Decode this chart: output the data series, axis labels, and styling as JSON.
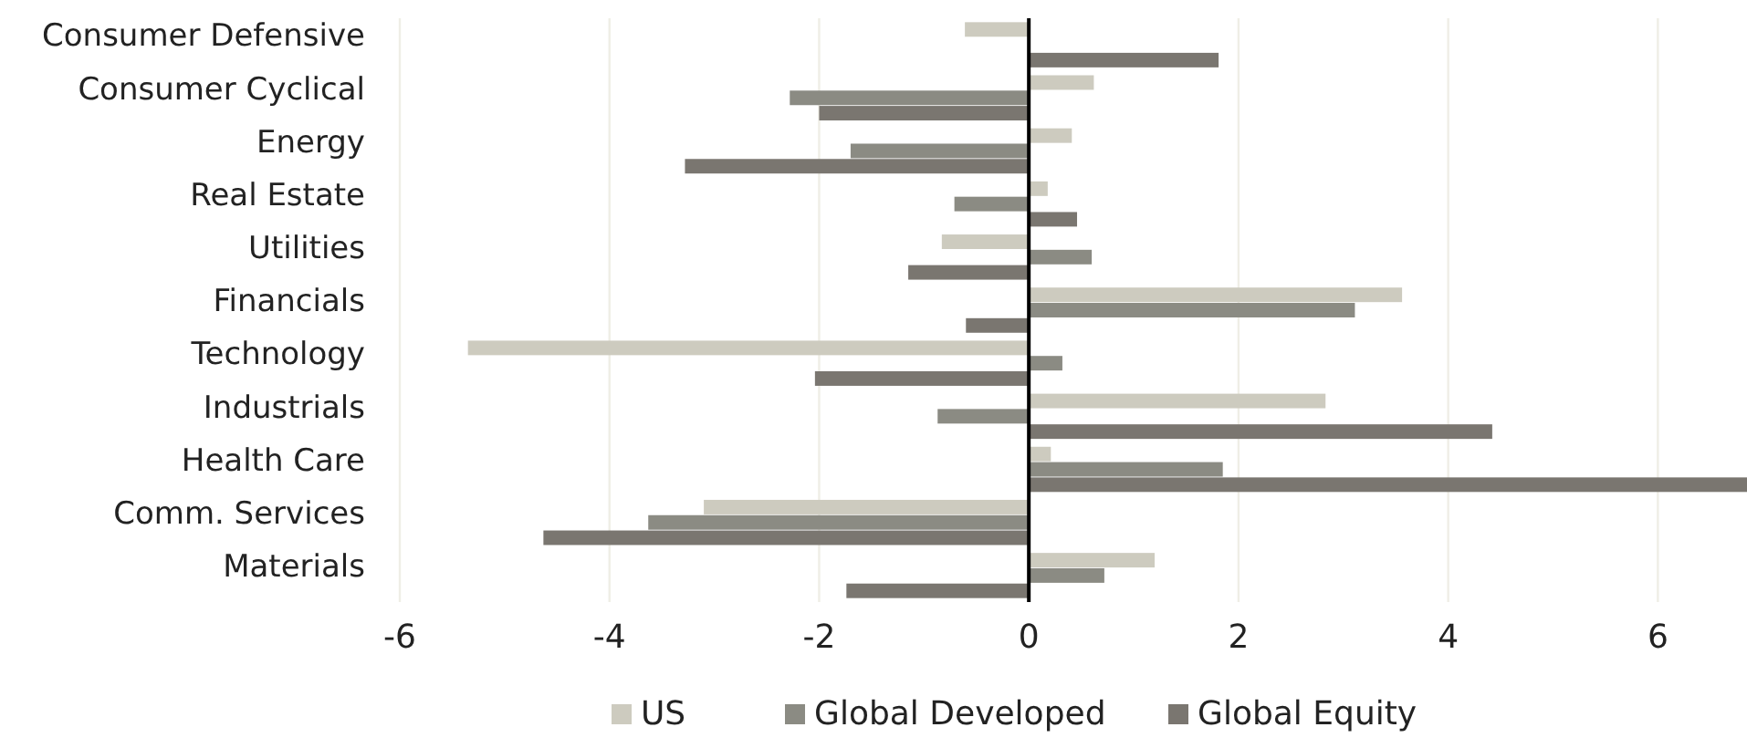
{
  "chart_data": {
    "type": "bar",
    "orientation": "horizontal",
    "categories": [
      "Consumer Defensive",
      "Consumer Cyclical",
      "Energy",
      "Real Estate",
      "Utilities",
      "Financials",
      "Technology",
      "Industrials",
      "Health Care",
      "Comm. Services",
      "Materials"
    ],
    "series": [
      {
        "name": "US",
        "color": "#cdcbbf",
        "values": [
          -0.61,
          0.62,
          0.41,
          0.18,
          -0.83,
          3.56,
          -5.35,
          2.83,
          0.21,
          -3.1,
          1.2
        ]
      },
      {
        "name": "Global Developed",
        "color": "#8b8b83",
        "values": [
          null,
          -2.28,
          -1.7,
          -0.71,
          0.6,
          3.11,
          0.32,
          -0.87,
          1.85,
          -3.63,
          0.72
        ]
      },
      {
        "name": "Global Equity",
        "color": "#7a7670",
        "values": [
          1.81,
          -2.0,
          -3.28,
          0.46,
          -1.15,
          -0.6,
          -2.04,
          4.42,
          6.85,
          -4.63,
          -1.74
        ]
      }
    ],
    "xlim": [
      -6,
      6.85
    ],
    "xticks": [
      -6,
      -4,
      -2,
      0,
      2,
      4,
      6
    ],
    "grid": "x",
    "legend": "bottom"
  }
}
